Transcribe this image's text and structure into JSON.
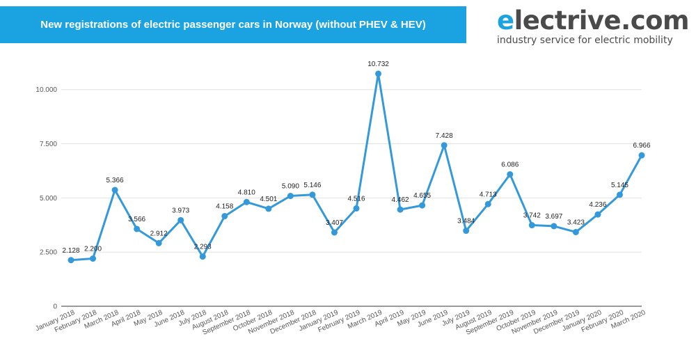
{
  "header": {
    "title": "New registrations of electric passenger cars in Norway (without PHEV & HEV)"
  },
  "brand": {
    "logo_first": "e",
    "logo_rest": "lectrive.com",
    "tagline": "industry service for electric mobility",
    "accent_color": "#1ba3e1"
  },
  "chart_data": {
    "type": "line",
    "title": "New registrations of electric passenger cars in Norway (without PHEV & HEV)",
    "xlabel": "",
    "ylabel": "",
    "ylim": [
      0,
      11500
    ],
    "yticks": [
      0,
      2500,
      5000,
      7500,
      10000
    ],
    "ytick_labels": [
      "0",
      "2.500",
      "5.000",
      "7.500",
      "10.000"
    ],
    "grid": true,
    "line_color": "#3399db",
    "categories": [
      "January 2018",
      "February 2018",
      "March 2018",
      "April 2018",
      "May 2018",
      "June 2018",
      "July 2018",
      "August 2018",
      "September 2018",
      "October 2018",
      "November 2018",
      "December 2018",
      "January 2019",
      "February 2019",
      "March 2019",
      "April 2019",
      "May 2019",
      "June 2019",
      "July 2019",
      "August 2019",
      "September 2019",
      "October 2019",
      "November 2019",
      "December 2019",
      "January 2020",
      "February 2020",
      "March 2020"
    ],
    "values": [
      2128,
      2200,
      5366,
      3566,
      2912,
      3973,
      2293,
      4158,
      4810,
      4501,
      5090,
      5146,
      3407,
      4516,
      10732,
      4462,
      4655,
      7428,
      3484,
      4713,
      6086,
      3742,
      3697,
      3423,
      4236,
      5145,
      6966
    ],
    "value_labels": [
      "2.128",
      "2.200",
      "5.366",
      "3.566",
      "2.912",
      "3.973",
      "2.293",
      "4.158",
      "4.810",
      "4.501",
      "5.090",
      "5.146",
      "3.407",
      "4.516",
      "10.732",
      "4.462",
      "4.655",
      "7.428",
      "3.484",
      "4.713",
      "6.086",
      "3.742",
      "3.697",
      "3.423",
      "4.236",
      "5.145",
      "6.966"
    ]
  }
}
